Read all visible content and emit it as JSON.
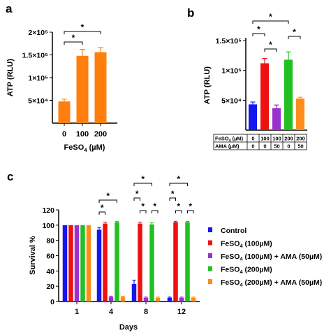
{
  "chart_data": [
    {
      "panel": "a",
      "type": "bar",
      "categories": [
        "0",
        "100",
        "200"
      ],
      "xlabel": "FeSO4 (µM)",
      "ylabel": "ATP (RLU)",
      "ylim": [
        0,
        200000
      ],
      "yticks": [
        {
          "v": 50000,
          "label": "5×10⁴"
        },
        {
          "v": 100000,
          "label": "1×10⁵"
        },
        {
          "v": 150000,
          "label": "1.5×10⁵"
        },
        {
          "v": 200000,
          "label": "2×10⁵"
        }
      ],
      "values": [
        48000,
        148000,
        156000
      ],
      "errors": [
        5000,
        14000,
        10000
      ],
      "color": "#ff7f0e",
      "significance": [
        {
          "from": 0,
          "to": 1,
          "label": "*"
        },
        {
          "from": 0,
          "to": 2,
          "label": "*"
        }
      ]
    },
    {
      "panel": "b",
      "type": "bar",
      "ylabel": "ATP (RLU)",
      "ylim": [
        0,
        150000
      ],
      "yticks": [
        {
          "v": 50000,
          "label": "5×10⁴"
        },
        {
          "v": 100000,
          "label": "1×10⁵"
        },
        {
          "v": 150000,
          "label": "1.5×10⁵"
        }
      ],
      "values": [
        43000,
        112000,
        37000,
        118000,
        53000
      ],
      "errors": [
        4000,
        8000,
        5000,
        13000,
        2000
      ],
      "colors": [
        "#1515ee",
        "#ee1111",
        "#9b30d0",
        "#22c022",
        "#ff8c1a"
      ],
      "condition_table": {
        "rows": [
          {
            "label": "FeSO4 (µM)",
            "cells": [
              "0",
              "100",
              "100",
              "200",
              "200"
            ]
          },
          {
            "label": "AMA (µM)",
            "cells": [
              "0",
              "0",
              "50",
              "0",
              "50"
            ]
          }
        ]
      },
      "significance": [
        {
          "from": 0,
          "to": 1,
          "label": "*"
        },
        {
          "from": 1,
          "to": 2,
          "label": "*"
        },
        {
          "from": 0,
          "to": 3,
          "label": "*"
        },
        {
          "from": 3,
          "to": 4,
          "label": "*"
        }
      ]
    },
    {
      "panel": "c",
      "type": "bar",
      "categories": [
        "1",
        "4",
        "8",
        "12"
      ],
      "xlabel": "Days",
      "ylabel": "Survival %",
      "ylim": [
        0,
        120
      ],
      "yticks": [
        0,
        20,
        40,
        60,
        80,
        100,
        120
      ],
      "series": [
        {
          "name": "Control",
          "color": "#1515ee",
          "values": [
            100,
            94,
            23,
            5
          ],
          "errors": [
            0,
            3,
            5,
            1
          ]
        },
        {
          "name": "FeSO4 (100µM)",
          "color": "#ee1111",
          "values": [
            100,
            102,
            102,
            104
          ],
          "errors": [
            0,
            2,
            2,
            1
          ]
        },
        {
          "name": "FeSO4 (100µM) + AMA (50µM)",
          "color": "#9b30d0",
          "values": [
            100,
            6,
            5,
            5
          ],
          "errors": [
            0,
            1,
            1,
            1
          ]
        },
        {
          "name": "FeSO4 (200µM)",
          "color": "#22c022",
          "values": [
            100,
            104,
            101,
            104
          ],
          "errors": [
            0,
            1,
            2,
            1
          ]
        },
        {
          "name": "FeSO4 (200µM) + AMA (50µM)",
          "color": "#ff8c1a",
          "values": [
            100,
            6,
            5,
            5
          ],
          "errors": [
            0,
            1,
            1,
            1
          ]
        }
      ],
      "significance": [
        {
          "group": 1,
          "pairs": [
            [
              0,
              1,
              "*"
            ],
            [
              0,
              3,
              "*"
            ]
          ]
        },
        {
          "group": 2,
          "pairs": [
            [
              0,
              1,
              "*"
            ],
            [
              1,
              2,
              "*"
            ],
            [
              3,
              4,
              "*"
            ],
            [
              0,
              3,
              "*"
            ]
          ]
        },
        {
          "group": 3,
          "pairs": [
            [
              0,
              1,
              "*"
            ],
            [
              1,
              2,
              "*"
            ],
            [
              3,
              4,
              "*"
            ],
            [
              0,
              3,
              "*"
            ]
          ]
        }
      ]
    }
  ],
  "labels": {
    "a": "a",
    "b": "b",
    "c": "c"
  }
}
